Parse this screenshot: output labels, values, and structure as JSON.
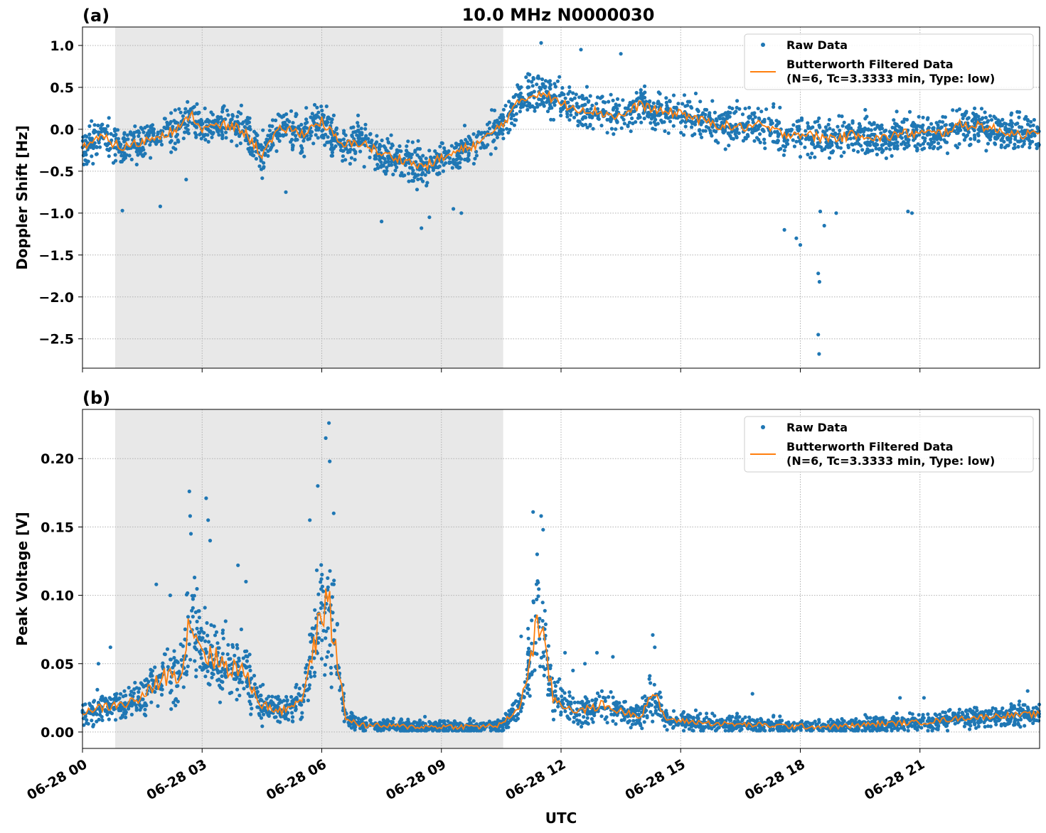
{
  "chart_data": {
    "title": "10.0 MHz N0000030",
    "xlabel": "UTC",
    "x_tick_labels": [
      "06-28 00",
      "06-28 03",
      "06-28 06",
      "06-28 09",
      "06-28 12",
      "06-28 15",
      "06-28 18",
      "06-28 21"
    ],
    "x_tick_hours": [
      0,
      3,
      6,
      9,
      12,
      15,
      18,
      21
    ],
    "xlim_hours": [
      0,
      24
    ],
    "shaded_interval_hours": [
      0.82,
      10.55
    ],
    "shade_color": "#e8e8e8",
    "grid": true,
    "legend_placement": "top-right",
    "colors": {
      "raw": "#1f77b4",
      "filtered": "#ff7f0e"
    },
    "legend": {
      "raw": "Raw Data",
      "filtered_line1": "Butterworth Filtered Data",
      "filtered_line2": "(N=6, Tc=3.3333 min, Type: low)"
    },
    "panels": [
      {
        "id": "a",
        "label": "(a)",
        "type": "scatter",
        "ylabel": "Doppler Shift [Hz]",
        "ylim": [
          -2.85,
          1.22
        ],
        "y_ticks": [
          1.0,
          0.5,
          0.0,
          -0.5,
          -1.0,
          -1.5,
          -2.0,
          -2.5
        ],
        "y_tick_labels": [
          "1.0",
          "0.5",
          "0.0",
          "−0.5",
          "−1.0",
          "−1.5",
          "−2.0",
          "−2.5"
        ],
        "filtered_trend": {
          "hours": [
            0,
            0.5,
            1,
            1.5,
            2,
            2.5,
            2.7,
            3,
            3.5,
            4,
            4.5,
            5,
            5.5,
            6,
            6.5,
            7,
            7.5,
            8,
            8.5,
            9,
            9.5,
            10,
            10.5,
            11,
            11.5,
            12,
            12.5,
            13,
            13.5,
            14,
            14.5,
            15,
            15.5,
            16,
            16.5,
            17,
            17.5,
            18,
            18.5,
            19,
            19.5,
            20,
            20.5,
            21,
            21.5,
            22,
            22.5,
            23,
            23.5,
            24
          ],
          "values": [
            -0.2,
            -0.1,
            -0.22,
            -0.15,
            -0.05,
            0.02,
            0.2,
            0.0,
            0.05,
            0.0,
            -0.3,
            0.02,
            -0.05,
            0.1,
            -0.2,
            -0.15,
            -0.3,
            -0.35,
            -0.45,
            -0.35,
            -0.25,
            -0.15,
            0.05,
            0.35,
            0.45,
            0.3,
            0.25,
            0.2,
            0.15,
            0.3,
            0.2,
            0.2,
            0.1,
            0.05,
            0.02,
            0.05,
            -0.05,
            -0.05,
            -0.1,
            -0.1,
            -0.05,
            -0.12,
            -0.05,
            -0.05,
            -0.05,
            0.05,
            0.05,
            -0.02,
            -0.05,
            -0.08
          ]
        },
        "raw_spread": 0.22,
        "outliers": [
          [
            1.0,
            -0.97
          ],
          [
            1.95,
            -0.92
          ],
          [
            2.6,
            -0.6
          ],
          [
            5.1,
            -0.75
          ],
          [
            7.5,
            -1.1
          ],
          [
            8.5,
            -1.18
          ],
          [
            8.7,
            -1.05
          ],
          [
            9.5,
            -1.0
          ],
          [
            9.3,
            -0.95
          ],
          [
            11.5,
            1.03
          ],
          [
            12.5,
            0.95
          ],
          [
            13.5,
            0.9
          ],
          [
            17.6,
            -1.2
          ],
          [
            17.9,
            -1.3
          ],
          [
            18.0,
            -1.38
          ],
          [
            18.5,
            -0.98
          ],
          [
            18.45,
            -1.72
          ],
          [
            18.48,
            -1.82
          ],
          [
            18.45,
            -2.45
          ],
          [
            18.47,
            -2.68
          ],
          [
            18.6,
            -1.15
          ],
          [
            18.9,
            -1.0
          ],
          [
            20.7,
            -0.98
          ],
          [
            20.8,
            -1.0
          ]
        ]
      },
      {
        "id": "b",
        "label": "(b)",
        "type": "scatter",
        "ylabel": "Peak Voltage [V]",
        "ylim": [
          -0.012,
          0.236
        ],
        "y_ticks": [
          0.0,
          0.05,
          0.1,
          0.15,
          0.2
        ],
        "y_tick_labels": [
          "0.00",
          "0.05",
          "0.10",
          "0.15",
          "0.20"
        ],
        "filtered_trend": {
          "hours": [
            0,
            0.5,
            1,
            1.5,
            2,
            2.5,
            2.7,
            3,
            3.5,
            4,
            4.5,
            5,
            5.5,
            5.8,
            6.0,
            6.2,
            6.4,
            6.6,
            7,
            8,
            9,
            10,
            10.5,
            11,
            11.2,
            11.4,
            11.6,
            11.8,
            12,
            12.5,
            13,
            13.5,
            14,
            14.3,
            14.6,
            15,
            16,
            17,
            18,
            19,
            20,
            21,
            22,
            23,
            24
          ],
          "values": [
            0.015,
            0.018,
            0.02,
            0.025,
            0.04,
            0.045,
            0.085,
            0.06,
            0.05,
            0.045,
            0.02,
            0.015,
            0.025,
            0.06,
            0.09,
            0.09,
            0.05,
            0.01,
            0.005,
            0.004,
            0.004,
            0.004,
            0.005,
            0.02,
            0.05,
            0.08,
            0.06,
            0.025,
            0.02,
            0.015,
            0.02,
            0.015,
            0.012,
            0.03,
            0.01,
            0.008,
            0.006,
            0.005,
            0.004,
            0.004,
            0.006,
            0.007,
            0.01,
            0.012,
            0.013
          ]
        },
        "raw_spread_fraction": 0.45,
        "outliers": [
          [
            0.4,
            0.05
          ],
          [
            0.7,
            0.062
          ],
          [
            1.85,
            0.108
          ],
          [
            2.2,
            0.1
          ],
          [
            2.68,
            0.176
          ],
          [
            2.7,
            0.158
          ],
          [
            2.72,
            0.145
          ],
          [
            3.1,
            0.171
          ],
          [
            3.15,
            0.155
          ],
          [
            3.2,
            0.14
          ],
          [
            3.9,
            0.122
          ],
          [
            4.1,
            0.11
          ],
          [
            5.7,
            0.155
          ],
          [
            5.9,
            0.18
          ],
          [
            6.1,
            0.215
          ],
          [
            6.18,
            0.226
          ],
          [
            6.2,
            0.198
          ],
          [
            6.3,
            0.16
          ],
          [
            11.0,
            0.07
          ],
          [
            11.3,
            0.161
          ],
          [
            11.5,
            0.158
          ],
          [
            11.55,
            0.148
          ],
          [
            11.4,
            0.13
          ],
          [
            12.1,
            0.058
          ],
          [
            12.3,
            0.045
          ],
          [
            12.6,
            0.05
          ],
          [
            12.9,
            0.058
          ],
          [
            13.3,
            0.055
          ],
          [
            14.3,
            0.071
          ],
          [
            14.35,
            0.062
          ],
          [
            16.8,
            0.028
          ],
          [
            20.5,
            0.025
          ],
          [
            21.1,
            0.025
          ],
          [
            23.7,
            0.03
          ]
        ]
      }
    ]
  }
}
